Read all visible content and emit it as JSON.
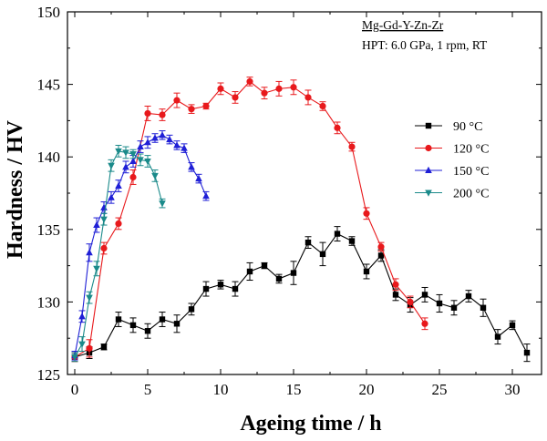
{
  "chart_data": {
    "type": "line",
    "xlabel": "Ageing time / h",
    "ylabel": "Hardness / HV",
    "xlim": [
      -0.5,
      32
    ],
    "ylim": [
      125,
      150
    ],
    "x_ticks": [
      "0",
      "5",
      "10",
      "15",
      "20",
      "25",
      "30"
    ],
    "y_ticks": [
      "125",
      "130",
      "135",
      "140",
      "145",
      "150"
    ],
    "annotation": {
      "line1": "Mg-Gd-Y-Zn-Zr",
      "line2": "HPT: 6.0 GPa, 1 rpm, RT"
    },
    "legend_position": "right",
    "series": [
      {
        "name": "90 °C",
        "color": "#000000",
        "marker": "square",
        "x": [
          0,
          1,
          2,
          3,
          4,
          5,
          6,
          7,
          8,
          9,
          10,
          11,
          12,
          13,
          14,
          15,
          16,
          17,
          18,
          19,
          20,
          21,
          22,
          23,
          24,
          25,
          26,
          27,
          28,
          29,
          30,
          31
        ],
        "y": [
          126.2,
          126.5,
          126.9,
          128.8,
          128.4,
          128.0,
          128.8,
          128.5,
          129.5,
          130.9,
          131.2,
          130.9,
          132.1,
          132.5,
          131.6,
          132.0,
          134.1,
          133.3,
          134.7,
          134.2,
          132.1,
          133.2,
          130.5,
          129.8,
          130.5,
          129.9,
          129.6,
          130.4,
          129.6,
          127.6,
          128.4,
          126.5
        ],
        "err": [
          0.3,
          0.4,
          0.2,
          0.5,
          0.5,
          0.5,
          0.5,
          0.6,
          0.4,
          0.5,
          0.3,
          0.5,
          0.6,
          0.2,
          0.3,
          0.8,
          0.4,
          0.8,
          0.5,
          0.3,
          0.5,
          0.4,
          0.4,
          0.5,
          0.5,
          0.6,
          0.5,
          0.4,
          0.6,
          0.5,
          0.3,
          0.6
        ]
      },
      {
        "name": "120 °C",
        "color": "#e8191c",
        "marker": "circle",
        "x": [
          0,
          1,
          2,
          3,
          4,
          5,
          6,
          7,
          8,
          9,
          10,
          11,
          12,
          13,
          14,
          15,
          16,
          17,
          18,
          19,
          20,
          21,
          22,
          23,
          24
        ],
        "y": [
          126.2,
          126.8,
          133.7,
          135.4,
          138.6,
          143.0,
          142.9,
          143.9,
          143.3,
          143.5,
          144.7,
          144.1,
          145.2,
          144.4,
          144.7,
          144.8,
          144.1,
          143.5,
          142.0,
          140.7,
          136.1,
          133.8,
          131.2,
          130.0,
          128.5
        ],
        "err": [
          0.3,
          0.6,
          0.4,
          0.4,
          0.5,
          0.5,
          0.4,
          0.5,
          0.3,
          0.2,
          0.4,
          0.4,
          0.3,
          0.4,
          0.5,
          0.5,
          0.5,
          0.3,
          0.4,
          0.3,
          0.4,
          0.3,
          0.4,
          0.4,
          0.4
        ]
      },
      {
        "name": "150 °C",
        "color": "#1f1fd6",
        "marker": "triangle-up",
        "x": [
          0,
          0.5,
          1,
          1.5,
          2,
          2.5,
          3,
          3.5,
          4,
          4.5,
          5,
          5.5,
          6,
          6.5,
          7,
          7.5,
          8,
          8.5,
          9
        ],
        "y": [
          126.3,
          129.0,
          133.4,
          135.3,
          136.5,
          137.2,
          138.0,
          139.3,
          139.7,
          140.7,
          141.0,
          141.3,
          141.5,
          141.2,
          140.8,
          140.6,
          139.3,
          138.5,
          137.3
        ],
        "err": [
          0.3,
          0.4,
          0.6,
          0.5,
          0.4,
          0.4,
          0.4,
          0.4,
          0.4,
          0.4,
          0.4,
          0.3,
          0.3,
          0.3,
          0.3,
          0.3,
          0.3,
          0.3,
          0.3
        ]
      },
      {
        "name": "200 °C",
        "color": "#1a8a8a",
        "marker": "triangle-down",
        "x": [
          0,
          0.5,
          1,
          1.5,
          2,
          2.5,
          3,
          3.5,
          4,
          4.5,
          5,
          5.5,
          6
        ],
        "y": [
          126.2,
          127.1,
          130.3,
          132.3,
          135.7,
          139.4,
          140.4,
          140.3,
          140.2,
          139.8,
          139.7,
          138.7,
          136.8
        ],
        "err": [
          0.3,
          0.5,
          0.4,
          0.5,
          0.4,
          0.4,
          0.4,
          0.4,
          0.3,
          0.4,
          0.4,
          0.4,
          0.3
        ]
      }
    ]
  }
}
